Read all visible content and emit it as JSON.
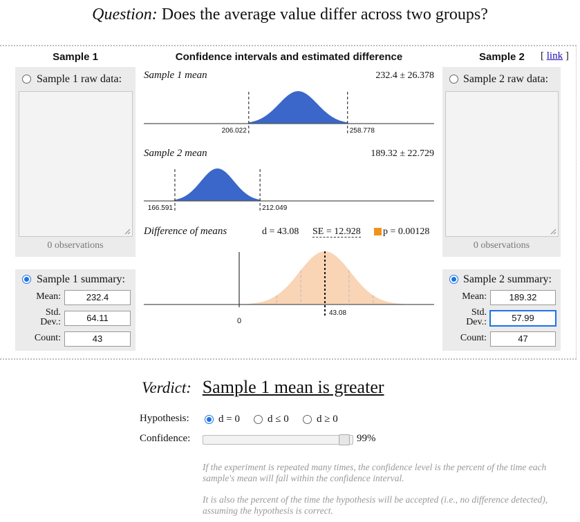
{
  "question": {
    "prefix": "Question:",
    "text": "Does the average value differ across two groups?"
  },
  "sample1": {
    "header": "Sample 1",
    "raw_label": "Sample 1 raw data:",
    "raw_selected": false,
    "observations": "0 observations",
    "summary_label": "Sample 1 summary:",
    "summary_selected": true,
    "mean_label": "Mean:",
    "mean": "232.4",
    "std_label_1": "Std.",
    "std_label_2": "Dev.:",
    "std": "64.11",
    "count_label": "Count:",
    "count": "43"
  },
  "sample2": {
    "header": "Sample 2",
    "link_open": "[",
    "link": "link",
    "link_close": "]",
    "raw_label": "Sample 2 raw data:",
    "raw_selected": false,
    "observations": "0 observations",
    "summary_label": "Sample 2 summary:",
    "summary_selected": true,
    "mean_label": "Mean:",
    "mean": "189.32",
    "std_label_1": "Std.",
    "std_label_2": "Dev.:",
    "std": "57.99",
    "count_label": "Count:",
    "count": "47"
  },
  "center": {
    "header": "Confidence intervals and estimated difference",
    "mean1": {
      "title": "Sample 1 mean",
      "stat": "232.4 ± 26.378",
      "low_label": "206.022",
      "high_label": "258.778"
    },
    "mean2": {
      "title": "Sample 2 mean",
      "stat": "189.32 ± 22.729",
      "low_label": "166.591",
      "high_label": "212.049"
    },
    "diff": {
      "title": "Difference of means",
      "d": "d = 43.08",
      "se": "SE = 12.928",
      "p": "p = 0.00128",
      "zero_label": "0",
      "d_label": "43.08"
    }
  },
  "chart_data": [
    {
      "type": "area",
      "title": "Sample 1 mean",
      "center": 232.4,
      "half_width": 26.378,
      "ci": [
        206.022,
        258.778
      ],
      "color": "#3a67c9"
    },
    {
      "type": "area",
      "title": "Sample 2 mean",
      "center": 189.32,
      "half_width": 22.729,
      "ci": [
        166.591,
        212.049
      ],
      "color": "#3a67c9"
    },
    {
      "type": "area",
      "title": "Difference of means",
      "center": 43.08,
      "se": 12.928,
      "p": 0.00128,
      "color": "#f9d4b5",
      "marker_color": "#f0921e"
    }
  ],
  "verdict": {
    "label": "Verdict:",
    "value": "Sample 1 mean is greater"
  },
  "hypothesis": {
    "label": "Hypothesis:",
    "options": [
      "d = 0",
      "d ≤ 0",
      "d ≥ 0"
    ],
    "selected": 0
  },
  "confidence": {
    "label": "Confidence:",
    "value": "99%",
    "fraction": 0.99
  },
  "notes": [
    "If the experiment is repeated many times, the confidence level is the percent of the time each sample's mean will fall within the confidence interval.",
    "It is also the percent of the time the hypothesis will be accepted (i.e., no difference detected), assuming the hypothesis is correct."
  ]
}
